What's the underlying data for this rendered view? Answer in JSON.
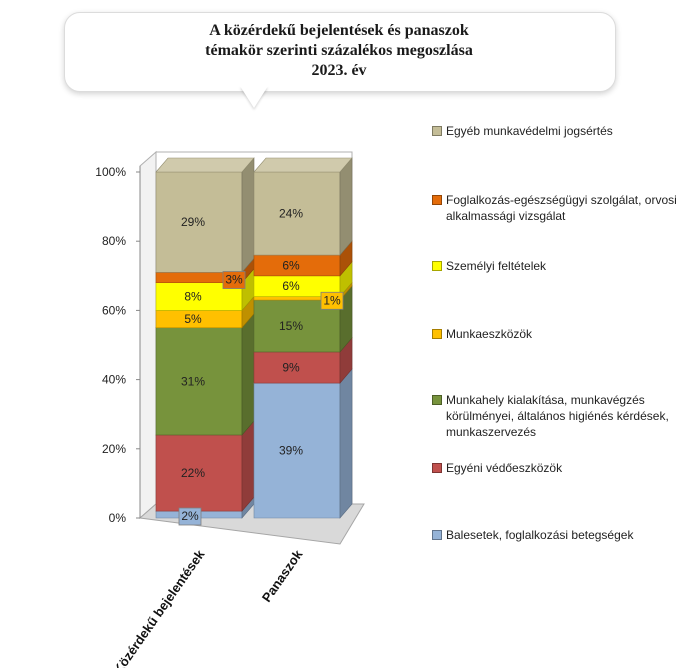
{
  "title": {
    "line1": "A közérdekű bejelentések és panaszok",
    "line2": "témakör szerinti százalékos megoszlása",
    "line3": "2023. év"
  },
  "chart_data": {
    "type": "bar",
    "stacked": true,
    "three_d": true,
    "categories": [
      "Közérdekű bejelentések",
      "Panaszok"
    ],
    "y_ticks": [
      "0%",
      "20%",
      "40%",
      "60%",
      "80%",
      "100%"
    ],
    "ylim": [
      0,
      100
    ],
    "grid": false,
    "legend_position": "right",
    "series": [
      {
        "name": "Balesetek, foglalkozási betegségek",
        "color": "#95B3D7",
        "values": [
          2,
          39
        ],
        "labels": [
          "2%",
          "39%"
        ]
      },
      {
        "name": "Egyéni védőeszközök",
        "color": "#C0504D",
        "values": [
          22,
          9
        ],
        "labels": [
          "22%",
          "9%"
        ]
      },
      {
        "name": "Munkahely kialakítása, munkavégzés körülményei, általános higiénés kérdések, munkaszervezés",
        "color": "#77933C",
        "values": [
          31,
          15
        ],
        "labels": [
          "31%",
          "15%"
        ]
      },
      {
        "name": "Munkaeszközök",
        "color": "#FFC000",
        "values": [
          5,
          1
        ],
        "labels": [
          "5%",
          "1%"
        ]
      },
      {
        "name": "Személyi feltételek",
        "color": "#FFFF00",
        "values": [
          8,
          6
        ],
        "labels": [
          "8%",
          "6%"
        ]
      },
      {
        "name": "Foglalkozás-egészségügyi szolgálat, orvosi alkalmassági vizsgálat",
        "color": "#E46C0A",
        "values": [
          3,
          6
        ],
        "labels": [
          "3%",
          "6%"
        ]
      },
      {
        "name": "Egyéb munkavédelmi jogsértés",
        "color": "#C4BD97",
        "values": [
          29,
          24
        ],
        "labels": [
          "29%",
          "24%"
        ]
      }
    ]
  },
  "legend": {
    "entries": [
      {
        "text": "Egyéb munkavédelmi jogsértés",
        "color": "#C4BD97"
      },
      {
        "text": "Foglalkozás-egészségügyi szolgálat, orvosi alkalmassági vizsgálat",
        "color": "#E46C0A"
      },
      {
        "text": "Személyi feltételek",
        "color": "#FFFF00"
      },
      {
        "text": "Munkaeszközök",
        "color": "#FFC000"
      },
      {
        "text": "Munkahely kialakítása, munkavégzés körülményei, általános higiénés kérdések, munkaszervezés",
        "color": "#77933C"
      },
      {
        "text": "Egyéni védőeszközök",
        "color": "#C0504D"
      },
      {
        "text": "Balesetek, foglalkozási betegségek",
        "color": "#95B3D7"
      }
    ]
  }
}
